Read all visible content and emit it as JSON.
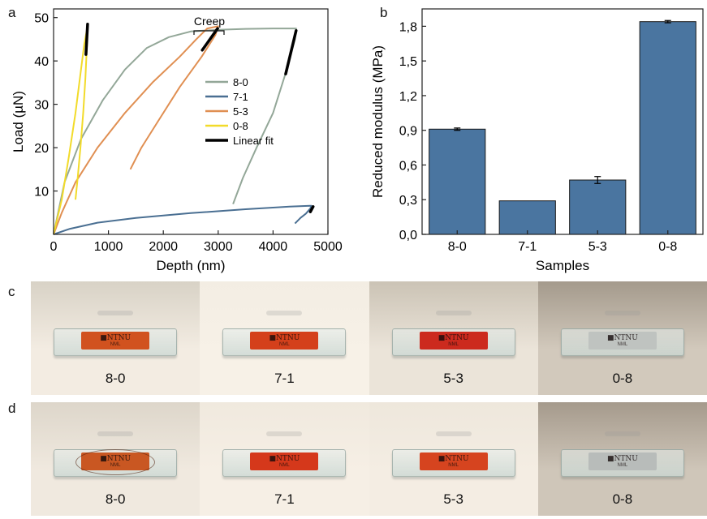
{
  "panels": {
    "a": "a",
    "b": "b",
    "c": "c",
    "d": "d"
  },
  "colors": {
    "s80": "#93a798",
    "s71": "#4a6f92",
    "s53": "#e08f52",
    "s08": "#f2db2a",
    "fit": "#000000",
    "bar": "#4a75a0"
  },
  "chart_data": [
    {
      "type": "line",
      "xlabel": "Depth (nm)",
      "ylabel": "Load (µN)",
      "xlim": [
        0,
        5000
      ],
      "ylim": [
        0,
        52
      ],
      "x_ticks": [
        "0",
        "1000",
        "2000",
        "3000",
        "4000",
        "5000"
      ],
      "y_ticks": [
        "10",
        "20",
        "30",
        "40",
        "50"
      ],
      "annotation": "Creep",
      "legend_position": "center-right",
      "series": [
        {
          "name": "8-0",
          "color_key": "s80",
          "points": [
            [
              0,
              0
            ],
            [
              200,
              12
            ],
            [
              500,
              22
            ],
            [
              900,
              31
            ],
            [
              1300,
              38
            ],
            [
              1700,
              43
            ],
            [
              2100,
              45.5
            ],
            [
              2500,
              46.8
            ],
            [
              3000,
              47.2
            ],
            [
              3500,
              47.4
            ],
            [
              4000,
              47.5
            ],
            [
              4420,
              47.5
            ],
            [
              4400,
              45
            ],
            [
              4250,
              38
            ],
            [
              4000,
              28
            ],
            [
              3700,
              20
            ],
            [
              3450,
              13
            ],
            [
              3270,
              7
            ]
          ]
        },
        {
          "name": "7-1",
          "color_key": "s71",
          "points": [
            [
              0,
              0
            ],
            [
              300,
              1.3
            ],
            [
              800,
              2.7
            ],
            [
              1500,
              3.8
            ],
            [
              2500,
              4.9
            ],
            [
              3500,
              5.8
            ],
            [
              4300,
              6.4
            ],
            [
              4700,
              6.6
            ],
            [
              4680,
              6.0
            ],
            [
              4600,
              4.8
            ],
            [
              4500,
              3.8
            ],
            [
              4400,
              2.5
            ]
          ]
        },
        {
          "name": "5-3",
          "color_key": "s53",
          "points": [
            [
              0,
              0
            ],
            [
              150,
              5
            ],
            [
              400,
              12
            ],
            [
              800,
              20
            ],
            [
              1300,
              28
            ],
            [
              1800,
              35
            ],
            [
              2300,
              41
            ],
            [
              2600,
              45
            ],
            [
              2800,
              47.5
            ],
            [
              3000,
              48
            ],
            [
              2950,
              46
            ],
            [
              2700,
              41
            ],
            [
              2300,
              34
            ],
            [
              1900,
              26
            ],
            [
              1600,
              20
            ],
            [
              1400,
              15
            ]
          ]
        },
        {
          "name": "0-8",
          "color_key": "s08",
          "points": [
            [
              0,
              0
            ],
            [
              150,
              8
            ],
            [
              280,
              18
            ],
            [
              400,
              28
            ],
            [
              500,
              38
            ],
            [
              560,
              44
            ],
            [
              620,
              48
            ],
            [
              610,
              44
            ],
            [
              580,
              36
            ],
            [
              540,
              28
            ],
            [
              490,
              20
            ],
            [
              440,
              13
            ],
            [
              400,
              8
            ]
          ]
        },
        {
          "name": "Linear fit",
          "color_key": "fit",
          "segments": [
            [
              [
                4420,
                47
              ],
              [
                4230,
                37
              ]
            ],
            [
              [
                4730,
                6.4
              ],
              [
                4680,
                5.2
              ]
            ],
            [
              [
                2990,
                47.5
              ],
              [
                2710,
                42.5
              ]
            ],
            [
              [
                620,
                48.5
              ],
              [
                590,
                41.5
              ]
            ]
          ]
        }
      ]
    },
    {
      "type": "bar",
      "xlabel": "Samples",
      "ylabel": "Reduced modulus (MPa)",
      "categories": [
        "8-0",
        "7-1",
        "5-3",
        "0-8"
      ],
      "values": [
        0.91,
        0.29,
        0.47,
        1.84
      ],
      "errors": [
        0.01,
        0.0,
        0.03,
        0.01
      ],
      "ylim": [
        0,
        1.95
      ],
      "y_ticks": [
        "0,0",
        "0,3",
        "0,6",
        "0,9",
        "1,2",
        "1,5",
        "1,8"
      ]
    }
  ],
  "photos": {
    "logo": "NTNU",
    "sub": "NML",
    "row_c": [
      {
        "label": "8-0",
        "film": "#d1521f",
        "bg1": "#d8d2c6",
        "bg2": "#f3ece2"
      },
      {
        "label": "7-1",
        "film": "#d4401b",
        "bg1": "#f3ede3",
        "bg2": "#f7f1e7"
      },
      {
        "label": "5-3",
        "film": "#cc2a1e",
        "bg1": "#cbc3b5",
        "bg2": "#ebe4d9"
      },
      {
        "label": "0-8",
        "film": "#bfc3c0",
        "bg1": "#a49a8c",
        "bg2": "#d2c9bc"
      }
    ],
    "row_d": [
      {
        "label": "8-0",
        "film": "#c95722",
        "bg1": "#ddd6ca",
        "bg2": "#f0e9df"
      },
      {
        "label": "7-1",
        "film": "#d5381b",
        "bg1": "#f0e9de",
        "bg2": "#f6efe5"
      },
      {
        "label": "5-3",
        "film": "#d6441f",
        "bg1": "#eee7dc",
        "bg2": "#f4ede3"
      },
      {
        "label": "0-8",
        "film": "#b8bcba",
        "bg1": "#a59a8c",
        "bg2": "#cfc6b9"
      }
    ]
  }
}
